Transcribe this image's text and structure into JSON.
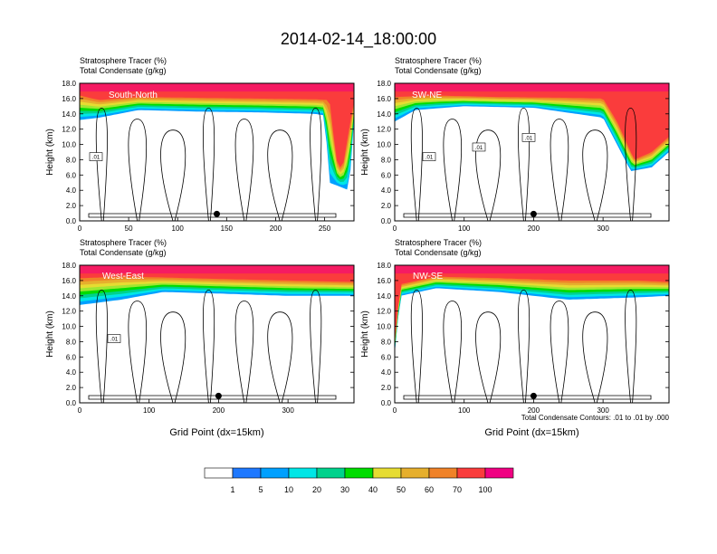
{
  "title": "2014-02-14_18:00:00",
  "panel_subtitle_1": "Stratosphere Tracer   (%)",
  "panel_subtitle_2": "Total Condensate   (g/kg)",
  "y_axis_label": "Height (km)",
  "x_axis_label": "Grid Point (dx=15km)",
  "contour_info": "Total Condensate Contours: .01 to .01 by .000",
  "colorbar": {
    "levels": [
      "1",
      "5",
      "10",
      "20",
      "30",
      "40",
      "50",
      "60",
      "70",
      "100"
    ],
    "colors": [
      "#ffffff",
      "#1e78ff",
      "#00a0ff",
      "#00e6e6",
      "#00d28c",
      "#00dc00",
      "#a0e632",
      "#e6dc32",
      "#e6af2d",
      "#f08228",
      "#fa3c3c",
      "#f00082"
    ]
  },
  "chart_data": [
    {
      "type": "heatmap",
      "cross_section": "South-North",
      "title": "Stratosphere Tracer (%)",
      "overlay": "Total Condensate (g/kg) contours",
      "xlabel": "",
      "ylabel": "Height (km)",
      "xlim": [
        0,
        280
      ],
      "ylim": [
        0,
        18
      ],
      "x_ticks": [
        "0",
        "50",
        "100",
        "150",
        "200",
        "250"
      ],
      "x_tick_values": [
        0,
        50,
        100,
        150,
        200,
        250
      ],
      "y_ticks": [
        "0.0",
        "2.0",
        "4.0",
        "6.0",
        "8.0",
        "10.0",
        "12.0",
        "14.0",
        "16.0",
        "18.0"
      ],
      "tracer_100_base_km": [
        {
          "x": 0,
          "z": 16.4
        },
        {
          "x": 20,
          "z": 15.8
        },
        {
          "x": 60,
          "z": 16.2
        },
        {
          "x": 120,
          "z": 16.1
        },
        {
          "x": 180,
          "z": 16.0
        },
        {
          "x": 240,
          "z": 15.9
        },
        {
          "x": 255,
          "z": 15.8
        },
        {
          "x": 262,
          "z": 8.0
        },
        {
          "x": 268,
          "z": 6.5
        },
        {
          "x": 275,
          "z": 12.0
        },
        {
          "x": 280,
          "z": 15.5
        }
      ],
      "tracer_1_base_km": [
        {
          "x": 0,
          "z": 13.2
        },
        {
          "x": 20,
          "z": 13.5
        },
        {
          "x": 60,
          "z": 14.5
        },
        {
          "x": 120,
          "z": 14.3
        },
        {
          "x": 180,
          "z": 14.2
        },
        {
          "x": 240,
          "z": 14.0
        },
        {
          "x": 250,
          "z": 13.8
        },
        {
          "x": 255,
          "z": 5.0
        },
        {
          "x": 265,
          "z": 4.5
        },
        {
          "x": 275,
          "z": 4.0
        },
        {
          "x": 280,
          "z": 13.0
        }
      ],
      "contour_labels": [
        ".01"
      ],
      "marker_x": 140
    },
    {
      "type": "heatmap",
      "cross_section": "SW-NE",
      "title": "Stratosphere Tracer (%)",
      "overlay": "Total Condensate (g/kg) contours",
      "xlabel": "",
      "ylabel": "Height (km)",
      "xlim": [
        0,
        395
      ],
      "ylim": [
        0,
        18
      ],
      "x_ticks": [
        "0",
        "100",
        "200",
        "300"
      ],
      "x_tick_values": [
        0,
        100,
        200,
        300
      ],
      "y_ticks": [
        "0.0",
        "2.0",
        "4.0",
        "6.0",
        "8.0",
        "10.0",
        "12.0",
        "14.0",
        "16.0",
        "18.0"
      ],
      "tracer_100_base_km": [
        {
          "x": 0,
          "z": 16.2
        },
        {
          "x": 60,
          "z": 16.4
        },
        {
          "x": 150,
          "z": 16.2
        },
        {
          "x": 250,
          "z": 16.1
        },
        {
          "x": 300,
          "z": 16.0
        },
        {
          "x": 320,
          "z": 13.0
        },
        {
          "x": 345,
          "z": 8.0
        },
        {
          "x": 370,
          "z": 9.0
        },
        {
          "x": 395,
          "z": 11.0
        }
      ],
      "tracer_1_base_km": [
        {
          "x": 0,
          "z": 13.0
        },
        {
          "x": 30,
          "z": 14.5
        },
        {
          "x": 100,
          "z": 15.0
        },
        {
          "x": 200,
          "z": 14.8
        },
        {
          "x": 300,
          "z": 13.5
        },
        {
          "x": 320,
          "z": 10.0
        },
        {
          "x": 340,
          "z": 6.5
        },
        {
          "x": 370,
          "z": 7.0
        },
        {
          "x": 395,
          "z": 9.0
        }
      ],
      "contour_labels": [
        ".01",
        ".01",
        ".01"
      ],
      "marker_x": 200
    },
    {
      "type": "heatmap",
      "cross_section": "West-East",
      "title": "Stratosphere Tracer (%)",
      "overlay": "Total Condensate (g/kg) contours",
      "xlabel": "Grid Point (dx=15km)",
      "ylabel": "Height (km)",
      "xlim": [
        0,
        395
      ],
      "ylim": [
        0,
        18
      ],
      "x_ticks": [
        "0",
        "100",
        "200",
        "300"
      ],
      "x_tick_values": [
        0,
        100,
        200,
        300
      ],
      "y_ticks": [
        "0.0",
        "2.0",
        "4.0",
        "6.0",
        "8.0",
        "10.0",
        "12.0",
        "14.0",
        "16.0",
        "18.0"
      ],
      "tracer_100_base_km": [
        {
          "x": 0,
          "z": 16.3
        },
        {
          "x": 60,
          "z": 16.5
        },
        {
          "x": 120,
          "z": 16.4
        },
        {
          "x": 200,
          "z": 16.2
        },
        {
          "x": 300,
          "z": 16.0
        },
        {
          "x": 395,
          "z": 15.8
        }
      ],
      "tracer_1_base_km": [
        {
          "x": 0,
          "z": 12.8
        },
        {
          "x": 60,
          "z": 13.5
        },
        {
          "x": 120,
          "z": 14.5
        },
        {
          "x": 200,
          "z": 14.3
        },
        {
          "x": 300,
          "z": 14.0
        },
        {
          "x": 395,
          "z": 14.0
        }
      ],
      "contour_labels": [
        ".01"
      ],
      "marker_x": 200
    },
    {
      "type": "heatmap",
      "cross_section": "NW-SE",
      "title": "Stratosphere Tracer (%)",
      "overlay": "Total Condensate (g/kg) contours",
      "xlabel": "Grid Point (dx=15km)",
      "ylabel": "Height (km)",
      "xlim": [
        0,
        395
      ],
      "ylim": [
        0,
        18
      ],
      "x_ticks": [
        "0",
        "100",
        "200",
        "300"
      ],
      "x_tick_values": [
        0,
        100,
        200,
        300
      ],
      "y_ticks": [
        "0.0",
        "2.0",
        "4.0",
        "6.0",
        "8.0",
        "10.0",
        "12.0",
        "14.0",
        "16.0",
        "18.0"
      ],
      "tracer_100_base_km": [
        {
          "x": 0,
          "z": 8.0
        },
        {
          "x": 8,
          "z": 15.5
        },
        {
          "x": 60,
          "z": 16.5
        },
        {
          "x": 150,
          "z": 16.3
        },
        {
          "x": 250,
          "z": 16.0
        },
        {
          "x": 350,
          "z": 16.0
        },
        {
          "x": 395,
          "z": 15.8
        }
      ],
      "tracer_1_base_km": [
        {
          "x": 0,
          "z": 6.5
        },
        {
          "x": 8,
          "z": 14.0
        },
        {
          "x": 60,
          "z": 15.0
        },
        {
          "x": 150,
          "z": 14.5
        },
        {
          "x": 250,
          "z": 13.5
        },
        {
          "x": 350,
          "z": 13.8
        },
        {
          "x": 395,
          "z": 14.0
        }
      ],
      "contour_labels": [],
      "marker_x": 200
    }
  ]
}
